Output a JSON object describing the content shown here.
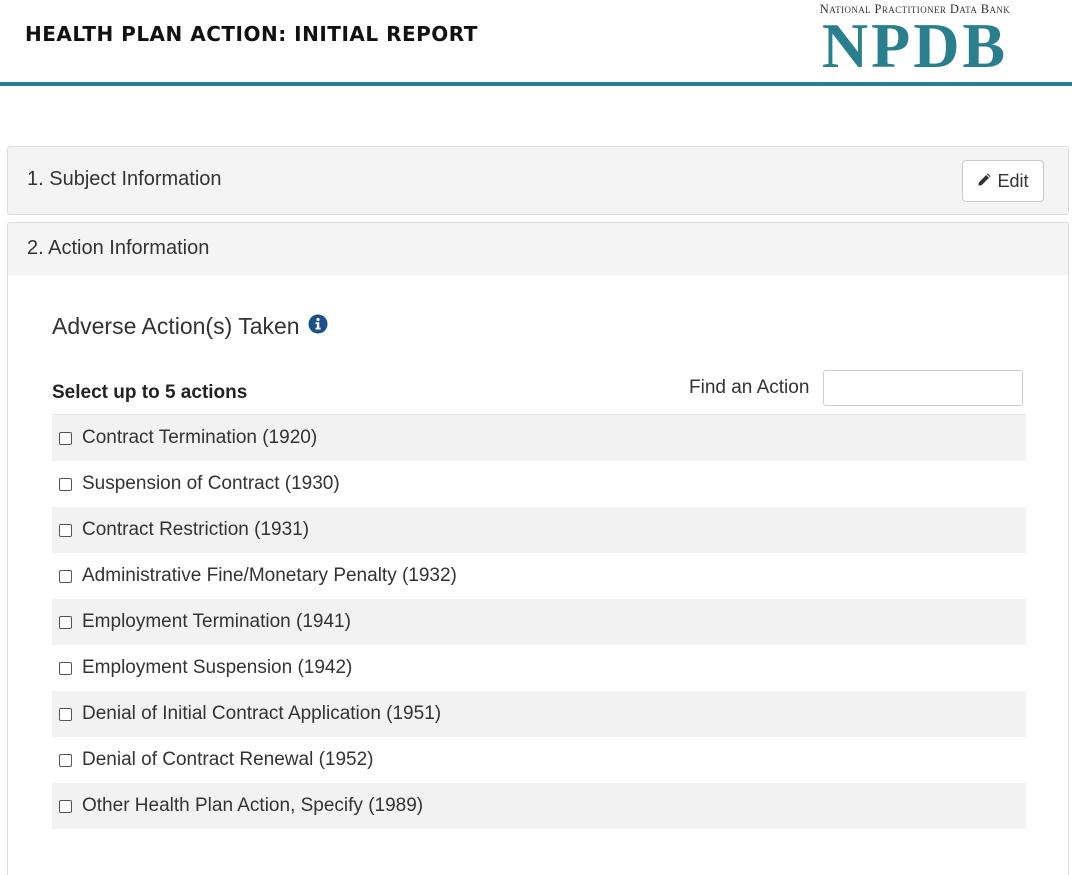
{
  "header": {
    "title": "HEALTH PLAN ACTION: INITIAL REPORT",
    "logo_subtitle": "National Practitioner Data Bank",
    "logo_text": "NPDB",
    "accent_color": "#2a7f8f"
  },
  "panels": {
    "subject": {
      "title": "1. Subject Information",
      "edit_label": "Edit",
      "edit_icon": "pencil-icon"
    },
    "action": {
      "title": "2. Action Information"
    }
  },
  "adverse_actions": {
    "heading": "Adverse Action(s) Taken",
    "info_icon": "info-circle-icon",
    "select_label": "Select up to 5 actions",
    "find_label": "Find an Action",
    "find_value": "",
    "items": [
      {
        "label": "Contract Termination (1920)",
        "checked": false
      },
      {
        "label": "Suspension of Contract (1930)",
        "checked": false
      },
      {
        "label": "Contract Restriction (1931)",
        "checked": false
      },
      {
        "label": "Administrative Fine/Monetary Penalty (1932)",
        "checked": false
      },
      {
        "label": "Employment Termination (1941)",
        "checked": false
      },
      {
        "label": "Employment Suspension (1942)",
        "checked": false
      },
      {
        "label": "Denial of Initial Contract Application (1951)",
        "checked": false
      },
      {
        "label": "Denial of Contract Renewal (1952)",
        "checked": false
      },
      {
        "label": "Other Health Plan Action, Specify (1989)",
        "checked": false
      }
    ]
  }
}
